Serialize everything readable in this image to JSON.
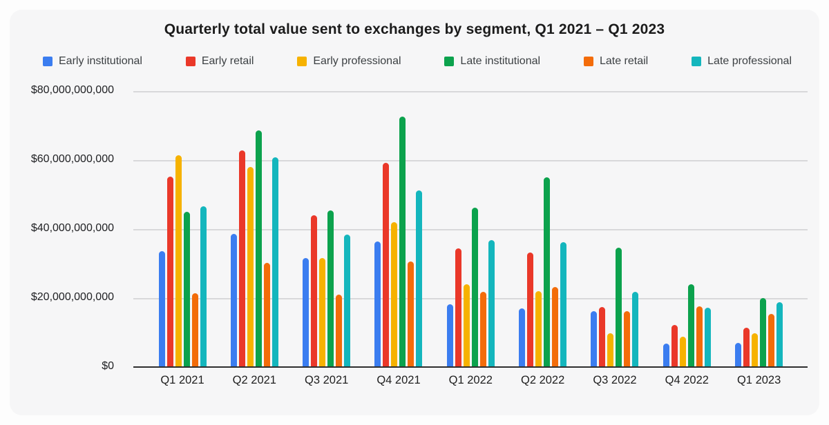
{
  "page": {
    "background": "#fdfdfd",
    "card_background": "#f6f6f7",
    "gridline_color": "#d8d8da",
    "axis_line_color": "#2e2e2e"
  },
  "chart_data": {
    "type": "bar",
    "title": "Quarterly total value sent to exchanges by segment, Q1 2021 – Q1 2023",
    "unit": "USD billions",
    "legend_position": "top",
    "grid": true,
    "categories": [
      "Q1 2021",
      "Q2 2021",
      "Q3 2021",
      "Q4 2021",
      "Q1 2022",
      "Q2 2022",
      "Q3 2022",
      "Q4 2022",
      "Q1 2023"
    ],
    "series": [
      {
        "name": "Early institutional",
        "color": "#3B7DF0",
        "values": [
          33.7,
          38.7,
          31.6,
          36.4,
          18.2,
          17.0,
          16.3,
          6.9,
          7.1
        ]
      },
      {
        "name": "Early retail",
        "color": "#EA3829",
        "values": [
          55.3,
          62.8,
          44.1,
          59.2,
          34.5,
          33.3,
          17.5,
          12.2,
          11.5
        ]
      },
      {
        "name": "Early professional",
        "color": "#F6B200",
        "values": [
          61.4,
          58.0,
          31.7,
          42.0,
          24.1,
          22.1,
          9.9,
          8.8,
          9.9
        ]
      },
      {
        "name": "Late institutional",
        "color": "#0CA24D",
        "values": [
          45.0,
          68.6,
          45.4,
          72.6,
          46.2,
          55.1,
          34.6,
          24.0,
          20.0
        ]
      },
      {
        "name": "Late retail",
        "color": "#F36C0A",
        "values": [
          21.4,
          30.3,
          21.1,
          30.7,
          21.8,
          23.2,
          16.3,
          17.6,
          15.4
        ]
      },
      {
        "name": "Late professional",
        "color": "#14B6BD",
        "values": [
          46.6,
          60.9,
          38.5,
          51.3,
          36.8,
          36.2,
          21.9,
          17.2,
          18.9
        ]
      }
    ],
    "y_axis": {
      "min": 0,
      "max": 80,
      "gridline_step": 20,
      "tick_labels_top_to_bottom": [
        "$80,000,000,000",
        "$60,000,000,000",
        "$40,000,000,000",
        "$20,000,000,000",
        "$0"
      ]
    }
  }
}
